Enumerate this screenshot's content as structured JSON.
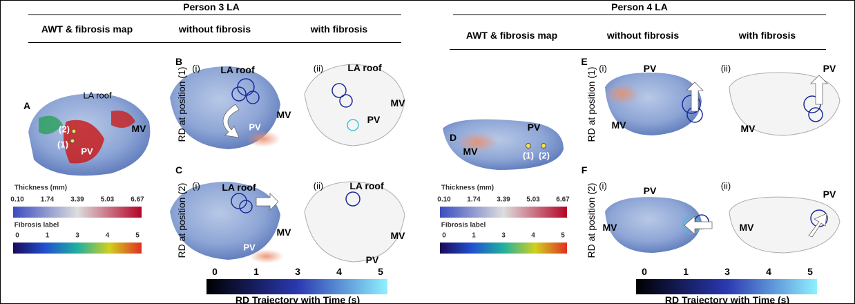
{
  "person3": {
    "title": "Person 3 LA",
    "headers": [
      "AWT & fibrosis map",
      "without fibrosis",
      "with fibrosis"
    ],
    "row_labels": [
      "RD at position (1)",
      "RD at position (2)"
    ]
  },
  "person4": {
    "title": "Person 4 LA",
    "headers": [
      "AWT & fibrosis map",
      "without fibrosis",
      "with fibrosis"
    ],
    "row_labels": [
      "RD at position (1)",
      "RD at position (2)"
    ]
  },
  "panel_letters": [
    "A",
    "B",
    "C",
    "D",
    "E",
    "F"
  ],
  "sub_labels": [
    "(i)",
    "(ii)"
  ],
  "anatomy": {
    "la_roof": "LA roof",
    "mv": "MV",
    "pv": "PV",
    "point1": "(1)",
    "point2": "(2)"
  },
  "thickness_bar": {
    "title": "Thickness (mm)",
    "ticks": [
      "0.10",
      1.74,
      3.39,
      5.03,
      6.67
    ]
  },
  "fibrosis_bar": {
    "title": "Fibrosis label",
    "ticks": [
      0,
      1,
      3,
      4,
      5
    ]
  },
  "trajectory_bar": {
    "title": "RD Trajectory with Time (s)",
    "ticks": [
      0,
      1,
      3,
      4,
      5
    ]
  }
}
